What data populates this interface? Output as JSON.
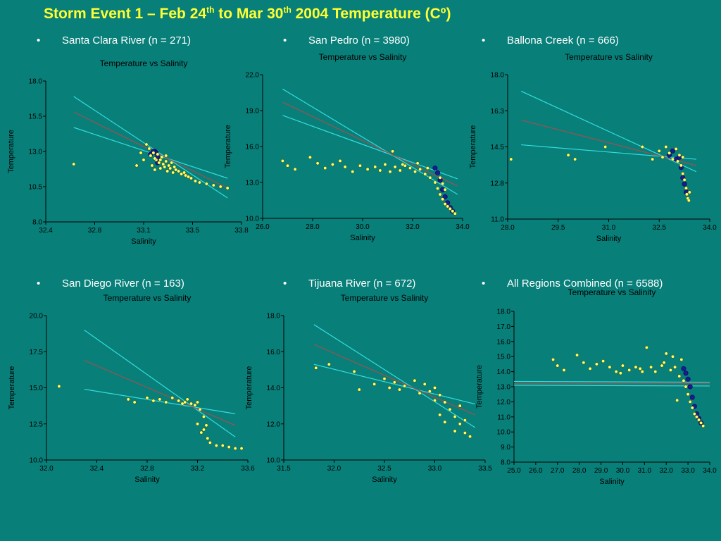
{
  "title": {
    "main_a": "Storm Event 1 – Feb 24",
    "sup_a": "th",
    "main_b": " to Mar 30",
    "sup_b": "th",
    "main_c": " 2004   Temperature (Cº)"
  },
  "colors": {
    "background": "#087f79",
    "title": "#ffff33",
    "points": "#ffff66",
    "dense_points": "#1c1c8c",
    "fit_line": "#a05050",
    "ci_line": "#33dddd"
  },
  "chart_data": [
    {
      "type": "scatter",
      "region_label": "Santa Clara River (n = 271)",
      "title": "Temperature vs Salinity",
      "xlabel": "Salinity",
      "ylabel": "Temperature",
      "xlim": [
        32.4,
        33.8
      ],
      "ylim": [
        8.0,
        18.0
      ],
      "xticks": [
        "32.4",
        "32.8",
        "33.1",
        "33.5",
        "33.8"
      ],
      "yticks": [
        "8.0",
        "10.5",
        "13.0",
        "15.5",
        "18.0"
      ],
      "fit": {
        "x": [
          32.6,
          33.7
        ],
        "y": [
          15.8,
          10.4
        ]
      },
      "ci_upper": {
        "x": [
          32.6,
          33.7
        ],
        "y": [
          16.9,
          9.7
        ]
      },
      "ci_lower": {
        "x": [
          32.6,
          33.7
        ],
        "y": [
          14.7,
          11.1
        ]
      },
      "points": [
        [
          32.6,
          12.1
        ],
        [
          33.05,
          12.0
        ],
        [
          33.08,
          12.9
        ],
        [
          33.1,
          12.4
        ],
        [
          33.12,
          13.5
        ],
        [
          33.14,
          13.2
        ],
        [
          33.15,
          12.7
        ],
        [
          33.16,
          12.0
        ],
        [
          33.17,
          12.9
        ],
        [
          33.18,
          11.7
        ],
        [
          33.19,
          12.4
        ],
        [
          33.2,
          12.8
        ],
        [
          33.21,
          12.2
        ],
        [
          33.22,
          11.8
        ],
        [
          33.23,
          12.6
        ],
        [
          33.24,
          12.1
        ],
        [
          33.25,
          11.9
        ],
        [
          33.26,
          12.3
        ],
        [
          33.27,
          11.6
        ],
        [
          33.28,
          12.0
        ],
        [
          33.29,
          11.8
        ],
        [
          33.3,
          12.2
        ],
        [
          33.31,
          11.5
        ],
        [
          33.32,
          11.9
        ],
        [
          33.33,
          11.7
        ],
        [
          33.35,
          11.6
        ],
        [
          33.37,
          11.4
        ],
        [
          33.39,
          11.5
        ],
        [
          33.4,
          11.3
        ],
        [
          33.42,
          11.2
        ],
        [
          33.44,
          11.1
        ],
        [
          33.47,
          10.9
        ],
        [
          33.5,
          10.8
        ],
        [
          33.55,
          10.7
        ],
        [
          33.6,
          10.6
        ],
        [
          33.65,
          10.5
        ],
        [
          33.7,
          10.4
        ],
        [
          33.18,
          12.5
        ],
        [
          33.22,
          12.4
        ],
        [
          33.26,
          12.7
        ]
      ],
      "dense": [
        [
          33.15,
          12.8
        ],
        [
          33.18,
          13.0
        ],
        [
          33.2,
          12.6
        ],
        [
          33.19,
          12.9
        ],
        [
          33.17,
          13.0
        ],
        [
          33.2,
          12.2
        ]
      ]
    },
    {
      "type": "scatter",
      "region_label": "San Pedro (n = 3980)",
      "title": "Temperature vs Salinity",
      "xlabel": "Salinity",
      "ylabel": "Temperature",
      "xlim": [
        26.0,
        34.0
      ],
      "ylim": [
        10.0,
        22.0
      ],
      "xticks": [
        "26.0",
        "28.0",
        "30.0",
        "32.0",
        "34.0"
      ],
      "yticks": [
        "10.0",
        "13.0",
        "16.0",
        "19.0",
        "22.0"
      ],
      "fit": {
        "x": [
          26.8,
          33.8
        ],
        "y": [
          19.7,
          12.7
        ]
      },
      "ci_upper": {
        "x": [
          26.8,
          33.8
        ],
        "y": [
          20.8,
          12.0
        ]
      },
      "ci_lower": {
        "x": [
          26.8,
          33.8
        ],
        "y": [
          18.6,
          13.3
        ]
      },
      "points": [
        [
          26.8,
          14.8
        ],
        [
          27.0,
          14.4
        ],
        [
          27.3,
          14.1
        ],
        [
          27.9,
          15.1
        ],
        [
          28.2,
          14.6
        ],
        [
          28.5,
          14.2
        ],
        [
          28.8,
          14.5
        ],
        [
          29.1,
          14.8
        ],
        [
          29.3,
          14.3
        ],
        [
          29.6,
          13.9
        ],
        [
          29.9,
          14.4
        ],
        [
          30.2,
          14.1
        ],
        [
          30.5,
          14.3
        ],
        [
          30.7,
          14.0
        ],
        [
          30.9,
          14.5
        ],
        [
          31.1,
          13.9
        ],
        [
          31.3,
          14.3
        ],
        [
          31.5,
          14.0
        ],
        [
          31.7,
          14.4
        ],
        [
          31.9,
          14.2
        ],
        [
          32.1,
          13.9
        ],
        [
          32.3,
          14.1
        ],
        [
          32.5,
          13.7
        ],
        [
          32.7,
          13.4
        ],
        [
          32.9,
          13.0
        ],
        [
          33.0,
          12.5
        ],
        [
          33.1,
          12.0
        ],
        [
          33.2,
          11.6
        ],
        [
          33.3,
          11.2
        ],
        [
          33.4,
          11.0
        ],
        [
          33.5,
          10.8
        ],
        [
          33.6,
          10.6
        ],
        [
          33.7,
          10.4
        ],
        [
          33.1,
          13.4
        ],
        [
          33.2,
          12.9
        ],
        [
          33.3,
          12.4
        ],
        [
          31.6,
          14.5
        ],
        [
          32.2,
          14.6
        ],
        [
          31.2,
          15.6
        ],
        [
          32.6,
          14.2
        ]
      ],
      "dense": [
        [
          32.9,
          14.2
        ],
        [
          33.0,
          13.8
        ],
        [
          33.1,
          13.2
        ],
        [
          33.2,
          12.4
        ],
        [
          33.3,
          11.8
        ],
        [
          33.4,
          11.3
        ],
        [
          33.5,
          10.9
        ],
        [
          33.6,
          10.6
        ]
      ]
    },
    {
      "type": "scatter",
      "region_label": "Ballona Creek (n = 666)",
      "title": "Temperature vs Salinity",
      "xlabel": "Salinity",
      "ylabel": "Temperature",
      "xlim": [
        28.0,
        34.0
      ],
      "ylim": [
        11.0,
        18.0
      ],
      "xticks": [
        "28.0",
        "29.5",
        "31.0",
        "32.5",
        "34.0"
      ],
      "yticks": [
        "11.0",
        "12.8",
        "14.5",
        "16.3",
        "18.0"
      ],
      "fit": {
        "x": [
          28.4,
          33.6
        ],
        "y": [
          15.8,
          13.6
        ]
      },
      "ci_upper": {
        "x": [
          28.4,
          33.6
        ],
        "y": [
          17.2,
          13.3
        ]
      },
      "ci_lower": {
        "x": [
          28.4,
          33.6
        ],
        "y": [
          14.6,
          13.9
        ]
      },
      "points": [
        [
          28.1,
          13.9
        ],
        [
          29.8,
          14.1
        ],
        [
          30.0,
          13.9
        ],
        [
          30.9,
          14.5
        ],
        [
          32.0,
          14.5
        ],
        [
          32.3,
          13.9
        ],
        [
          32.5,
          14.3
        ],
        [
          32.6,
          14.0
        ],
        [
          32.7,
          14.5
        ],
        [
          32.8,
          14.2
        ],
        [
          32.9,
          13.9
        ],
        [
          33.0,
          14.4
        ],
        [
          33.1,
          14.1
        ],
        [
          33.15,
          13.6
        ],
        [
          33.2,
          13.2
        ],
        [
          33.25,
          12.9
        ],
        [
          33.3,
          12.5
        ],
        [
          33.32,
          12.2
        ],
        [
          33.35,
          12.0
        ],
        [
          33.38,
          11.9
        ],
        [
          33.4,
          12.3
        ],
        [
          33.2,
          14.0
        ],
        [
          33.05,
          13.8
        ]
      ],
      "dense": [
        [
          32.8,
          14.1
        ],
        [
          32.9,
          14.3
        ],
        [
          33.0,
          13.9
        ],
        [
          33.1,
          14.0
        ],
        [
          33.15,
          13.5
        ],
        [
          33.2,
          13.0
        ],
        [
          33.25,
          12.7
        ],
        [
          33.3,
          12.3
        ]
      ]
    },
    {
      "type": "scatter",
      "region_label": "San Diego River (n = 163)",
      "title": "Temperature vs Salinity",
      "xlabel": "Salinity",
      "ylabel": "Temperature",
      "xlim": [
        32.0,
        33.6
      ],
      "ylim": [
        10.0,
        20.0
      ],
      "xticks": [
        "32.0",
        "32.4",
        "32.8",
        "33.2",
        "33.6"
      ],
      "yticks": [
        "10.0",
        "12.5",
        "15.0",
        "17.5",
        "20.0"
      ],
      "fit": {
        "x": [
          32.3,
          33.5
        ],
        "y": [
          16.9,
          12.4
        ]
      },
      "ci_upper": {
        "x": [
          32.3,
          33.5
        ],
        "y": [
          19.0,
          11.6
        ]
      },
      "ci_lower": {
        "x": [
          32.3,
          33.5
        ],
        "y": [
          14.9,
          13.2
        ]
      },
      "points": [
        [
          32.1,
          15.1
        ],
        [
          32.65,
          14.2
        ],
        [
          32.7,
          14.0
        ],
        [
          32.8,
          14.3
        ],
        [
          32.85,
          14.1
        ],
        [
          32.9,
          14.2
        ],
        [
          32.95,
          14.0
        ],
        [
          33.0,
          14.3
        ],
        [
          33.05,
          14.1
        ],
        [
          33.1,
          14.0
        ],
        [
          33.15,
          13.9
        ],
        [
          33.2,
          14.0
        ],
        [
          33.22,
          13.5
        ],
        [
          33.25,
          13.0
        ],
        [
          33.2,
          12.5
        ],
        [
          33.25,
          12.1
        ],
        [
          33.28,
          11.5
        ],
        [
          33.3,
          11.2
        ],
        [
          33.35,
          11.0
        ],
        [
          33.4,
          11.0
        ],
        [
          33.45,
          10.9
        ],
        [
          33.5,
          10.8
        ],
        [
          33.55,
          10.8
        ],
        [
          33.27,
          12.4
        ],
        [
          33.18,
          13.8
        ],
        [
          33.12,
          14.2
        ],
        [
          33.08,
          13.9
        ],
        [
          33.23,
          11.9
        ]
      ],
      "dense": []
    },
    {
      "type": "scatter",
      "region_label": "Tijuana River (n = 672)",
      "title": "Temperature vs Salinity",
      "xlabel": "Salinity",
      "ylabel": "Temperature",
      "xlim": [
        31.5,
        33.5
      ],
      "ylim": [
        10.0,
        18.0
      ],
      "xticks": [
        "31.5",
        "32.0",
        "32.5",
        "33.0",
        "33.5"
      ],
      "yticks": [
        "10.0",
        "12.0",
        "14.0",
        "16.0",
        "18.0"
      ],
      "fit": {
        "x": [
          31.8,
          33.4
        ],
        "y": [
          16.4,
          12.5
        ]
      },
      "ci_upper": {
        "x": [
          31.8,
          33.4
        ],
        "y": [
          17.5,
          11.8
        ]
      },
      "ci_lower": {
        "x": [
          31.8,
          33.4
        ],
        "y": [
          15.3,
          13.1
        ]
      },
      "points": [
        [
          31.82,
          15.1
        ],
        [
          31.95,
          15.3
        ],
        [
          32.2,
          14.9
        ],
        [
          32.25,
          13.9
        ],
        [
          32.4,
          14.2
        ],
        [
          32.5,
          14.5
        ],
        [
          32.55,
          14.0
        ],
        [
          32.6,
          14.3
        ],
        [
          32.7,
          14.1
        ],
        [
          32.8,
          14.4
        ],
        [
          32.9,
          14.2
        ],
        [
          32.95,
          13.8
        ],
        [
          33.0,
          14.0
        ],
        [
          33.05,
          13.6
        ],
        [
          33.1,
          13.2
        ],
        [
          33.15,
          12.8
        ],
        [
          33.2,
          12.4
        ],
        [
          33.25,
          12.0
        ],
        [
          33.3,
          11.5
        ],
        [
          33.35,
          11.3
        ],
        [
          33.1,
          12.1
        ],
        [
          33.2,
          11.6
        ],
        [
          33.25,
          13.0
        ],
        [
          33.3,
          12.2
        ],
        [
          32.85,
          13.7
        ],
        [
          33.0,
          13.3
        ],
        [
          33.05,
          12.5
        ],
        [
          32.65,
          13.9
        ]
      ],
      "dense": []
    },
    {
      "type": "scatter",
      "region_label": "All Regions Combined (n = 6588)",
      "title": "Temperature vs Salinity",
      "xlabel": "Salinity",
      "ylabel": "Temperature",
      "xlim": [
        25.0,
        34.0
      ],
      "ylim": [
        8.0,
        18.0
      ],
      "xticks": [
        "25.0",
        "26.0",
        "27.0",
        "28.0",
        "29.0",
        "30.0",
        "31.0",
        "32.0",
        "33.0",
        "34.0"
      ],
      "yticks": [
        "8.0",
        "9.0",
        "10.0",
        "11.0",
        "12.0",
        "13.0",
        "14.0",
        "15.0",
        "16.0",
        "17.0",
        "18.0"
      ],
      "fit": {
        "x": [
          25.0,
          34.0
        ],
        "y": [
          13.2,
          13.2
        ]
      },
      "ci_upper": {
        "x": [
          25.0,
          34.0
        ],
        "y": [
          13.35,
          13.3
        ]
      },
      "ci_lower": {
        "x": [
          25.0,
          34.0
        ],
        "y": [
          13.1,
          13.05
        ]
      },
      "points": [
        [
          26.8,
          14.8
        ],
        [
          27.0,
          14.4
        ],
        [
          27.3,
          14.1
        ],
        [
          27.9,
          15.1
        ],
        [
          28.2,
          14.6
        ],
        [
          28.5,
          14.2
        ],
        [
          28.8,
          14.5
        ],
        [
          29.1,
          14.7
        ],
        [
          29.4,
          14.3
        ],
        [
          29.7,
          14.0
        ],
        [
          30.0,
          14.4
        ],
        [
          30.3,
          14.1
        ],
        [
          30.6,
          14.3
        ],
        [
          30.9,
          14.0
        ],
        [
          31.1,
          15.6
        ],
        [
          31.3,
          14.3
        ],
        [
          31.5,
          14.0
        ],
        [
          31.8,
          14.4
        ],
        [
          32.0,
          15.2
        ],
        [
          32.2,
          14.1
        ],
        [
          32.4,
          14.3
        ],
        [
          32.6,
          13.7
        ],
        [
          32.8,
          13.4
        ],
        [
          32.9,
          13.0
        ],
        [
          33.0,
          12.5
        ],
        [
          33.1,
          12.0
        ],
        [
          33.2,
          11.6
        ],
        [
          33.3,
          11.2
        ],
        [
          33.4,
          11.0
        ],
        [
          33.5,
          10.8
        ],
        [
          33.6,
          10.6
        ],
        [
          33.7,
          10.4
        ],
        [
          32.5,
          12.1
        ],
        [
          32.7,
          14.8
        ],
        [
          31.9,
          14.6
        ],
        [
          32.3,
          15.0
        ],
        [
          30.8,
          14.2
        ],
        [
          29.9,
          13.9
        ]
      ],
      "dense": [
        [
          32.8,
          14.2
        ],
        [
          32.9,
          13.9
        ],
        [
          33.0,
          13.5
        ],
        [
          33.1,
          13.0
        ],
        [
          33.2,
          12.3
        ],
        [
          33.3,
          11.7
        ],
        [
          33.4,
          11.2
        ],
        [
          33.5,
          10.9
        ],
        [
          33.6,
          10.6
        ]
      ]
    }
  ]
}
